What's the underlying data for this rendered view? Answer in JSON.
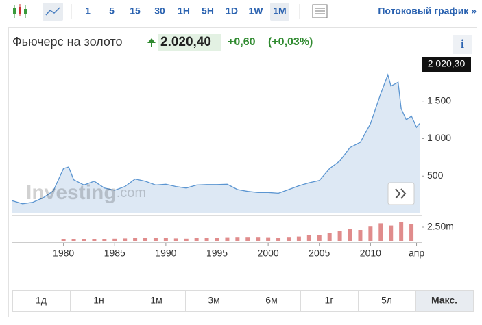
{
  "toolbar": {
    "intervals": [
      "1",
      "5",
      "15",
      "30",
      "1H",
      "5H",
      "1D",
      "1W",
      "1M"
    ],
    "active_interval": 8,
    "stream_link": "Потоковый график »"
  },
  "header": {
    "title": "Фьючерс на золото",
    "price": "2.020,40",
    "change": "+0,60",
    "change_pct": "(+0,03%)",
    "info": "i"
  },
  "watermark": {
    "brand": "Investing",
    "suffix": ".com"
  },
  "chart_data": [
    {
      "type": "area",
      "color": "#5b95d1",
      "fill": "#dde8f4",
      "x": [
        1975,
        1976,
        1977,
        1978,
        1979,
        1980,
        1980.5,
        1981,
        1982,
        1983,
        1984,
        1985,
        1986,
        1987,
        1988,
        1989,
        1990,
        1991,
        1992,
        1993,
        1994,
        1995,
        1996,
        1997,
        1998,
        1999,
        2000,
        2001,
        2002,
        2003,
        2004,
        2005,
        2006,
        2007,
        2008,
        2009,
        2010,
        2011,
        2011.7,
        2012,
        2012.7,
        2013,
        2013.5,
        2014,
        2014.5,
        2014.8
      ],
      "values": [
        170,
        130,
        150,
        210,
        300,
        600,
        620,
        450,
        380,
        430,
        340,
        310,
        360,
        460,
        430,
        380,
        390,
        360,
        340,
        380,
        385,
        385,
        390,
        320,
        295,
        280,
        280,
        270,
        320,
        370,
        410,
        440,
        600,
        700,
        880,
        950,
        1200,
        1600,
        1850,
        1700,
        1750,
        1400,
        1250,
        1300,
        1150,
        1200
      ],
      "xlim": [
        1975,
        2015
      ],
      "ylim": [
        0,
        2100
      ],
      "xticks": [
        1980,
        1985,
        1990,
        1995,
        2000,
        2005,
        2010,
        {
          "value": 2014.5,
          "label": "апр"
        }
      ],
      "yticks": [
        500,
        {
          "value": 1000,
          "label": "1 000"
        },
        {
          "value": 1500,
          "label": "1 500"
        }
      ],
      "last_price": {
        "value": 2020.3,
        "label": "2 020,30"
      }
    },
    {
      "type": "bar",
      "color": "#e08c8c",
      "x": [
        1980,
        1981,
        1982,
        1983,
        1984,
        1985,
        1986,
        1987,
        1988,
        1989,
        1990,
        1991,
        1992,
        1993,
        1994,
        1995,
        1996,
        1997,
        1998,
        1999,
        2000,
        2001,
        2002,
        2003,
        2004,
        2005,
        2006,
        2007,
        2008,
        2009,
        2010,
        2011,
        2012,
        2013,
        2014
      ],
      "values": [
        300000,
        250000,
        300000,
        300000,
        350000,
        400000,
        450000,
        500000,
        500000,
        500000,
        500000,
        450000,
        400000,
        500000,
        500000,
        500000,
        550000,
        600000,
        600000,
        600000,
        550000,
        500000,
        600000,
        800000,
        1000000,
        1100000,
        1400000,
        1800000,
        2200000,
        2000000,
        2600000,
        3200000,
        2800000,
        3400000,
        3000000
      ],
      "xlim": [
        1975,
        2015
      ],
      "ylim": [
        0,
        4500000
      ],
      "yticks": [
        {
          "value": 2500000,
          "label": "2.50m"
        }
      ]
    }
  ],
  "ranges": [
    "1д",
    "1н",
    "1м",
    "3м",
    "6м",
    "1г",
    "5л",
    "Макс."
  ],
  "active_range": 7
}
